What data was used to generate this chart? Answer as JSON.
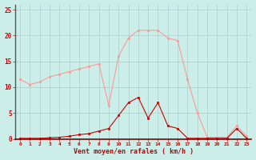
{
  "bg_color": "#cceee8",
  "grid_color": "#aacccc",
  "x_labels": [
    "0",
    "1",
    "2",
    "3",
    "4",
    "5",
    "6",
    "7",
    "8",
    "9",
    "10",
    "11",
    "12",
    "13",
    "14",
    "15",
    "16",
    "17",
    "18",
    "19",
    "20",
    "21",
    "22",
    "23"
  ],
  "x_values": [
    0,
    1,
    2,
    3,
    4,
    5,
    6,
    7,
    8,
    9,
    10,
    11,
    12,
    13,
    14,
    15,
    16,
    17,
    18,
    19,
    20,
    21,
    22,
    23
  ],
  "rafales": [
    11.5,
    10.5,
    11.0,
    12.0,
    12.5,
    13.0,
    13.5,
    14.0,
    14.5,
    6.5,
    16.0,
    19.5,
    21.0,
    21.0,
    21.0,
    19.5,
    19.0,
    11.5,
    5.0,
    0.3,
    0.3,
    0.3,
    2.5,
    0.5
  ],
  "moyen": [
    0.1,
    0.1,
    0.1,
    0.2,
    0.3,
    0.5,
    0.8,
    1.0,
    1.5,
    2.0,
    4.5,
    7.0,
    8.0,
    4.0,
    7.0,
    2.5,
    2.0,
    0.1,
    0.1,
    0.1,
    0.1,
    0.1,
    2.0,
    0.1
  ],
  "rafales_color": "#ff9999",
  "moyen_color": "#cc0000",
  "xlabel": "Vent moyen/en rafales ( km/h )",
  "ylim": [
    0,
    26
  ],
  "yticks": [
    0,
    5,
    10,
    15,
    20,
    25
  ],
  "xlabel_color": "#cc0000",
  "tick_color": "#cc0000",
  "axis_line_color": "#880000",
  "left_spine_color": "#555555"
}
